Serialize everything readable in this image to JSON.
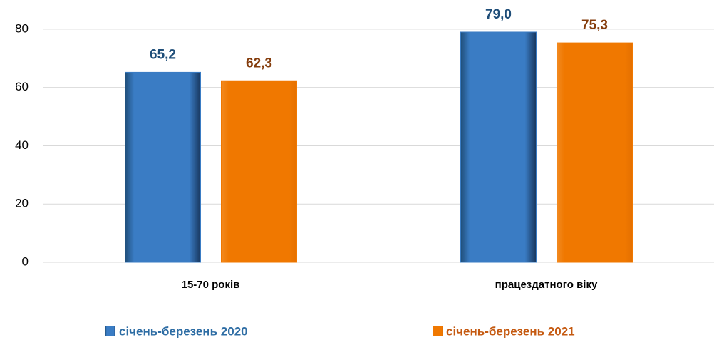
{
  "chart_data": {
    "type": "bar",
    "categories": [
      "15-70 років",
      "працездатного віку"
    ],
    "series": [
      {
        "name": "січень-березень 2020",
        "color": "#3a7cc4",
        "label_color": "#1f4e79",
        "values": [
          65.2,
          79.0
        ],
        "value_labels": [
          "65,2",
          "79,0"
        ]
      },
      {
        "name": "січень-березень 2021",
        "color": "#f07800",
        "label_color": "#843c0c",
        "values": [
          62.3,
          75.3
        ],
        "value_labels": [
          "62,3",
          "75,3"
        ]
      }
    ],
    "ylim": [
      0,
      90
    ],
    "yticks": [
      0,
      20,
      40,
      60,
      80
    ],
    "grid": true,
    "legend": "bottom"
  }
}
